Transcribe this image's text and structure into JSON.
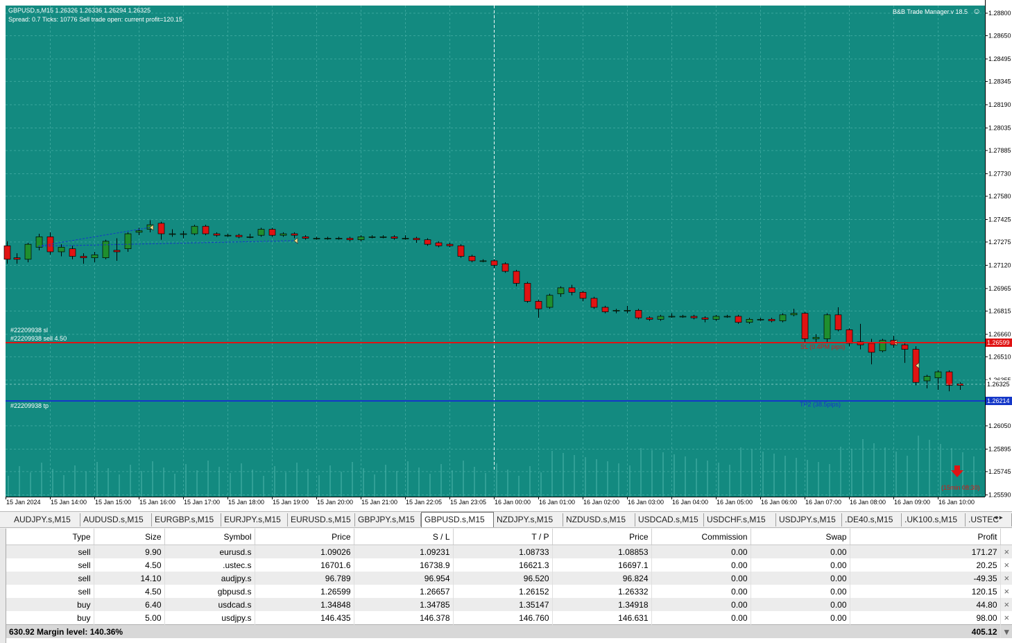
{
  "chart": {
    "symbol_line": "GBPUSD.s,M15  1.26326 1.26336 1.26294 1.26325",
    "status_line": "Spread: 0.7   Ticks: 10776   Sell trade open: current profit=120.15",
    "manager_label": "B&B Trade Manager.v 18.5",
    "sl_order_label": "#22209938 sl",
    "sell_order_label": "#22209938 sell 4.50",
    "tp_order_label": "#22209938 tp",
    "sl_line_text": "SL (0.4PM pips)",
    "tp_line_text": "TP2 (38.5pips)",
    "timer_text": "(15min 08:30)",
    "sl_price_tag": "1.26599",
    "tp_price_tag": "1.26214",
    "bid_price_tag": "1.26325",
    "colors": {
      "background": "#138a80",
      "grid": "#3aa59c",
      "bull": "#1f8f2e",
      "bear": "#e01313",
      "sl_line": "#e01313",
      "tp_line": "#1437c8",
      "text": "#ffffff"
    },
    "price_axis": [
      "1.28800",
      "1.28650",
      "1.28495",
      "1.28345",
      "1.28190",
      "1.28035",
      "1.27885",
      "1.27730",
      "1.27580",
      "1.27425",
      "1.27275",
      "1.27120",
      "1.26965",
      "1.26815",
      "1.26660",
      "1.26510",
      "1.26355",
      "1.26050",
      "1.25895",
      "1.25745",
      "1.25590"
    ],
    "time_axis": [
      "15 Jan 2024",
      "15 Jan 14:00",
      "15 Jan 15:00",
      "15 Jan 16:00",
      "15 Jan 17:00",
      "15 Jan 18:00",
      "15 Jan 19:00",
      "15 Jan 20:00",
      "15 Jan 21:00",
      "15 Jan 22:05",
      "15 Jan 23:05",
      "16 Jan 00:00",
      "16 Jan 01:00",
      "16 Jan 02:00",
      "16 Jan 03:00",
      "16 Jan 04:00",
      "16 Jan 05:00",
      "16 Jan 06:00",
      "16 Jan 07:00",
      "16 Jan 08:00",
      "16 Jan 09:00",
      "16 Jan 10:00"
    ]
  },
  "tabs": [
    {
      "label": "AUDJPY.s,M15",
      "active": false
    },
    {
      "label": "AUDUSD.s,M15",
      "active": false
    },
    {
      "label": "EURGBP.s,M15",
      "active": false
    },
    {
      "label": "EURJPY.s,M15",
      "active": false
    },
    {
      "label": "EURUSD.s,M15",
      "active": false
    },
    {
      "label": "GBPJPY.s,M15",
      "active": false
    },
    {
      "label": "GBPUSD.s,M15",
      "active": true
    },
    {
      "label": "NZDJPY.s,M15",
      "active": false
    },
    {
      "label": "NZDUSD.s,M15",
      "active": false
    },
    {
      "label": "USDCAD.s,M15",
      "active": false
    },
    {
      "label": "USDCHF.s,M15",
      "active": false
    },
    {
      "label": "USDJPY.s,M15",
      "active": false
    },
    {
      "label": ".DE40.s,M15",
      "active": false
    },
    {
      "label": ".UK100.s,M15",
      "active": false
    },
    {
      "label": ".USTEC",
      "active": false
    }
  ],
  "table": {
    "headers": [
      "Type",
      "Size",
      "Symbol",
      "Price",
      "S / L",
      "T / P",
      "Price",
      "Commission",
      "Swap",
      "Profit"
    ],
    "rows": [
      [
        "sell",
        "9.90",
        "eurusd.s",
        "1.09026",
        "1.09231",
        "1.08733",
        "1.08853",
        "0.00",
        "0.00",
        "171.27"
      ],
      [
        "sell",
        "4.50",
        ".ustec.s",
        "16701.6",
        "16738.9",
        "16621.3",
        "16697.1",
        "0.00",
        "0.00",
        "20.25"
      ],
      [
        "sell",
        "14.10",
        "audjpy.s",
        "96.789",
        "96.954",
        "96.520",
        "96.824",
        "0.00",
        "0.00",
        "-49.35"
      ],
      [
        "sell",
        "4.50",
        "gbpusd.s",
        "1.26599",
        "1.26657",
        "1.26152",
        "1.26332",
        "0.00",
        "0.00",
        "120.15"
      ],
      [
        "buy",
        "6.40",
        "usdcad.s",
        "1.34848",
        "1.34785",
        "1.35147",
        "1.34918",
        "0.00",
        "0.00",
        "44.80"
      ],
      [
        "buy",
        "5.00",
        "usdjpy.s",
        "146.435",
        "146.378",
        "146.760",
        "146.631",
        "0.00",
        "0.00",
        "98.00"
      ]
    ],
    "summary_left": "630.92  Margin level: 140.36%",
    "summary_right": "405.12",
    "close_glyph": "×"
  }
}
